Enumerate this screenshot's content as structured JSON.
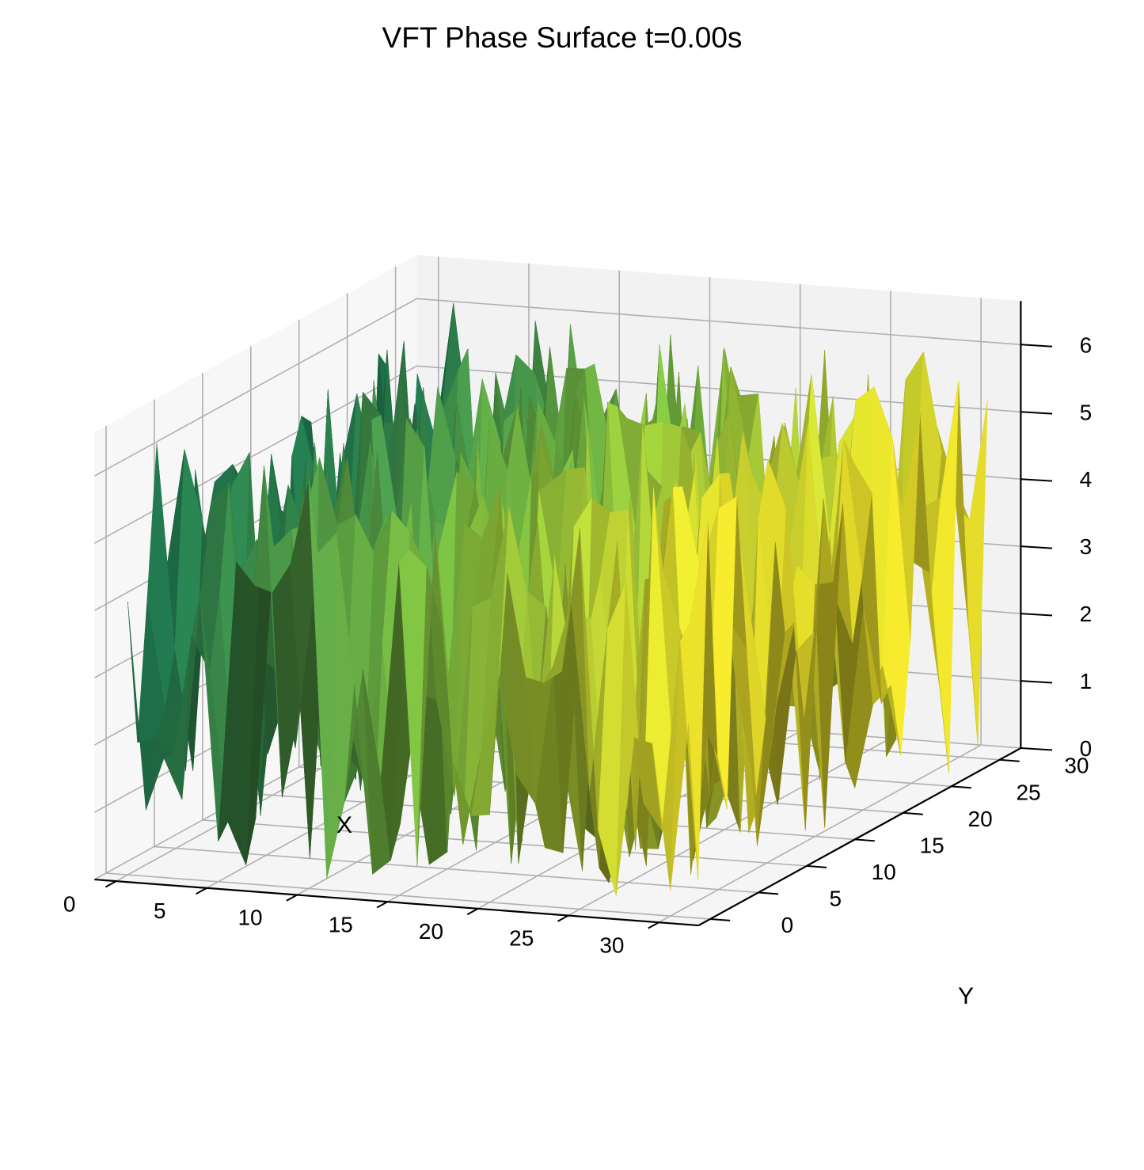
{
  "chart_data": {
    "type": "surface",
    "title": "VFT Phase Surface t=0.00s",
    "xlabel": "X",
    "ylabel": "Y",
    "zlabel": "",
    "x_ticks": [
      "0",
      "5",
      "10",
      "15",
      "20",
      "25",
      "30"
    ],
    "y_ticks": [
      "0",
      "5",
      "10",
      "15",
      "20",
      "25",
      "30"
    ],
    "z_ticks": [
      "0",
      "1",
      "2",
      "3",
      "4",
      "5",
      "6"
    ],
    "xlim": [
      0,
      31
    ],
    "ylim": [
      0,
      31
    ],
    "zlim": [
      0,
      6.28
    ],
    "grid": true,
    "grid_size": [
      32,
      32
    ],
    "colormap": "summer-like green to yellow along x",
    "surface_colors": {
      "low_x": "#1f7a52",
      "mid_x": "#7fc041",
      "high_x": "#f2e52a"
    },
    "pane_color": "#f2f2f2",
    "grid_color": "#b0b0b0"
  }
}
